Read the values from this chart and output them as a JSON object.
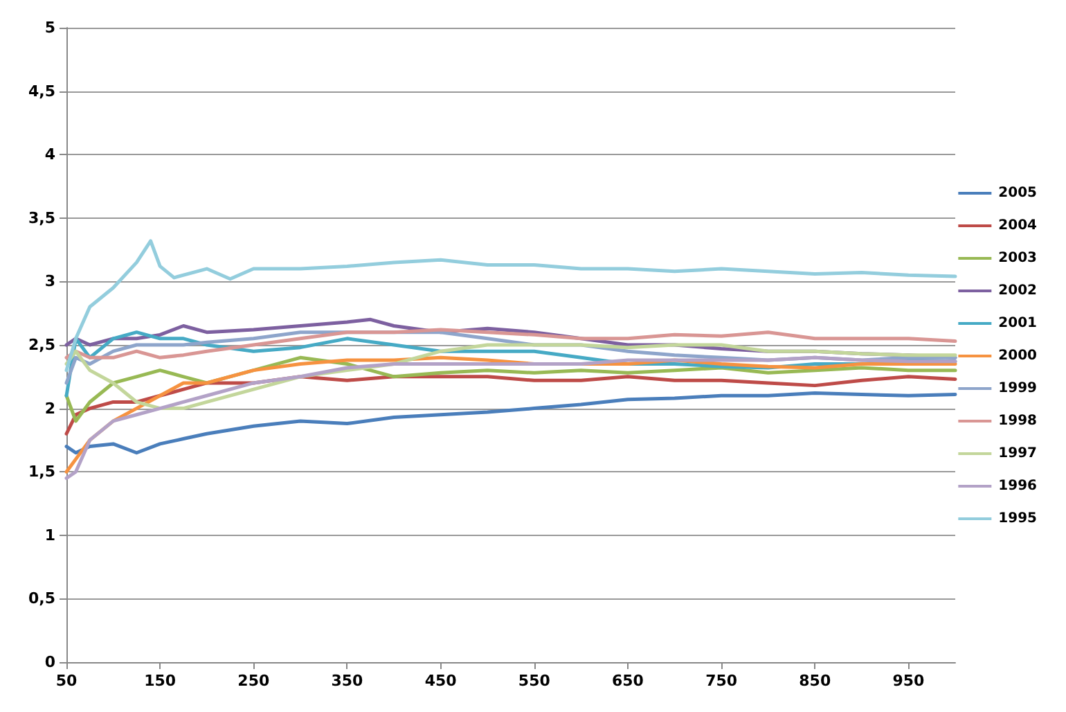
{
  "chart_data": {
    "type": "line",
    "x": [
      50,
      60,
      75,
      100,
      125,
      150,
      175,
      200,
      250,
      300,
      350,
      400,
      450,
      500,
      550,
      600,
      650,
      700,
      750,
      800,
      850,
      900,
      950,
      1000
    ],
    "series": [
      {
        "name": "2005",
        "color": "#4a7ebb",
        "values": [
          1.7,
          1.65,
          1.7,
          1.72,
          1.65,
          1.72,
          1.76,
          1.8,
          1.86,
          1.9,
          1.88,
          1.93,
          1.95,
          1.97,
          2.0,
          2.03,
          2.07,
          2.08,
          2.1,
          2.1,
          2.12,
          2.11,
          2.1,
          2.11
        ]
      },
      {
        "name": "2004",
        "color": "#be4b48",
        "values": [
          1.8,
          1.95,
          2.0,
          2.05,
          2.05,
          2.1,
          2.15,
          2.2,
          2.2,
          2.25,
          2.22,
          2.25,
          2.25,
          2.25,
          2.22,
          2.22,
          2.25,
          2.22,
          2.22,
          2.2,
          2.18,
          2.22,
          2.25,
          2.23
        ]
      },
      {
        "name": "2003",
        "color": "#98b954",
        "values": [
          2.1,
          1.9,
          2.05,
          2.2,
          2.25,
          2.3,
          2.25,
          2.2,
          2.3,
          2.4,
          2.35,
          2.25,
          2.28,
          2.3,
          2.28,
          2.3,
          2.28,
          2.3,
          2.32,
          2.28,
          2.3,
          2.32,
          2.3,
          2.3
        ]
      },
      {
        "name": "2002",
        "color": "#7d60a0",
        "x": [
          50,
          60,
          75,
          100,
          125,
          150,
          175,
          200,
          250,
          300,
          350,
          375,
          400,
          450,
          500,
          550,
          600,
          650,
          700,
          750,
          800,
          850,
          900,
          950,
          1000
        ],
        "values": [
          2.5,
          2.55,
          2.5,
          2.55,
          2.55,
          2.58,
          2.65,
          2.6,
          2.62,
          2.65,
          2.68,
          2.7,
          2.65,
          2.6,
          2.63,
          2.6,
          2.55,
          2.5,
          2.5,
          2.47,
          2.45,
          2.45,
          2.43,
          2.42,
          2.4
        ]
      },
      {
        "name": "2001",
        "color": "#46aac5",
        "values": [
          2.1,
          2.55,
          2.4,
          2.55,
          2.6,
          2.55,
          2.55,
          2.5,
          2.45,
          2.48,
          2.55,
          2.5,
          2.45,
          2.45,
          2.45,
          2.4,
          2.35,
          2.35,
          2.33,
          2.32,
          2.35,
          2.35,
          2.38,
          2.37
        ]
      },
      {
        "name": "2000",
        "color": "#f69240",
        "values": [
          1.5,
          1.6,
          1.75,
          1.9,
          2.0,
          2.1,
          2.2,
          2.2,
          2.3,
          2.35,
          2.38,
          2.38,
          2.4,
          2.38,
          2.35,
          2.35,
          2.35,
          2.38,
          2.35,
          2.33,
          2.32,
          2.35,
          2.35,
          2.35
        ]
      },
      {
        "name": "1999",
        "color": "#8ea5cb",
        "values": [
          2.2,
          2.4,
          2.35,
          2.45,
          2.5,
          2.5,
          2.5,
          2.52,
          2.55,
          2.6,
          2.6,
          2.6,
          2.6,
          2.55,
          2.5,
          2.5,
          2.45,
          2.42,
          2.4,
          2.38,
          2.4,
          2.38,
          2.4,
          2.4
        ]
      },
      {
        "name": "1998",
        "color": "#d99694",
        "values": [
          2.4,
          2.45,
          2.4,
          2.4,
          2.45,
          2.4,
          2.42,
          2.45,
          2.5,
          2.55,
          2.6,
          2.6,
          2.62,
          2.6,
          2.58,
          2.55,
          2.55,
          2.58,
          2.57,
          2.6,
          2.55,
          2.55,
          2.55,
          2.53
        ]
      },
      {
        "name": "1997",
        "color": "#c3d69b",
        "values": [
          2.35,
          2.45,
          2.3,
          2.2,
          2.05,
          2.0,
          2.0,
          2.05,
          2.15,
          2.25,
          2.3,
          2.35,
          2.45,
          2.5,
          2.5,
          2.5,
          2.48,
          2.5,
          2.5,
          2.45,
          2.45,
          2.43,
          2.42,
          2.42
        ]
      },
      {
        "name": "1996",
        "color": "#b3a2c7",
        "values": [
          1.45,
          1.5,
          1.75,
          1.9,
          1.95,
          2.0,
          2.05,
          2.1,
          2.2,
          2.25,
          2.32,
          2.35,
          2.35,
          2.35,
          2.35,
          2.35,
          2.38,
          2.38,
          2.38,
          2.38,
          2.4,
          2.38,
          2.37,
          2.37
        ]
      },
      {
        "name": "1995",
        "color": "#93cddd",
        "x": [
          50,
          60,
          75,
          100,
          125,
          140,
          150,
          165,
          200,
          225,
          250,
          300,
          350,
          400,
          450,
          500,
          550,
          600,
          650,
          700,
          750,
          800,
          850,
          900,
          950,
          1000
        ],
        "values": [
          2.3,
          2.55,
          2.8,
          2.95,
          3.15,
          3.32,
          3.12,
          3.03,
          3.1,
          3.02,
          3.1,
          3.1,
          3.12,
          3.15,
          3.17,
          3.13,
          3.13,
          3.1,
          3.1,
          3.08,
          3.1,
          3.08,
          3.06,
          3.07,
          3.05,
          3.04
        ]
      }
    ],
    "xlim": [
      50,
      1000
    ],
    "xticks": [
      50,
      150,
      250,
      350,
      450,
      550,
      650,
      750,
      850,
      950
    ],
    "ylim": [
      0,
      5
    ],
    "yticks": [
      0,
      {
        "value": 0.5,
        "label": "0,5"
      },
      1,
      {
        "value": 1.5,
        "label": "1,5"
      },
      2,
      {
        "value": 2.5,
        "label": "2,5"
      },
      3,
      {
        "value": 3.5,
        "label": "3,5"
      },
      4,
      {
        "value": 4.5,
        "label": "4,5"
      },
      5
    ],
    "grid": "y",
    "legend": "right",
    "marker": "none",
    "line_style": "solid"
  }
}
